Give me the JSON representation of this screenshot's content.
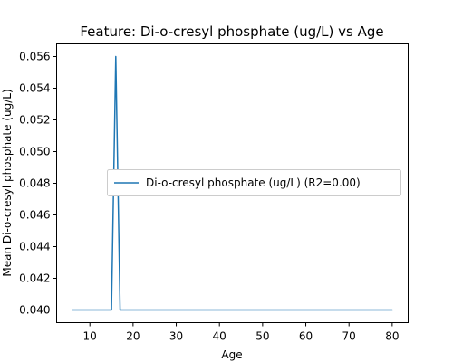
{
  "chart_data": {
    "type": "line",
    "title": "Feature: Di-o-cresyl phosphate (ug/L) vs Age",
    "xlabel": "Age",
    "ylabel": "Mean Di-o-cresyl phosphate (ug/L)",
    "xlim": [
      2.3,
      83.7
    ],
    "ylim": [
      0.0392,
      0.0568
    ],
    "xticks": [
      10,
      20,
      30,
      40,
      50,
      60,
      70,
      80
    ],
    "yticks": [
      0.04,
      0.042,
      0.044,
      0.046,
      0.048,
      0.05,
      0.052,
      0.054,
      0.056
    ],
    "ytick_labels": [
      "0.040",
      "0.042",
      "0.044",
      "0.046",
      "0.048",
      "0.050",
      "0.052",
      "0.054",
      "0.056"
    ],
    "grid": false,
    "legend_position": "center-right",
    "series": [
      {
        "name": "Di-o-cresyl phosphate (ug/L) (R2=0.00)",
        "color": "#1f77b4",
        "points": [
          {
            "x": 6,
            "y": 0.04
          },
          {
            "x": 15,
            "y": 0.04
          },
          {
            "x": 16,
            "y": 0.056
          },
          {
            "x": 17,
            "y": 0.04
          },
          {
            "x": 80,
            "y": 0.04
          }
        ]
      }
    ]
  }
}
